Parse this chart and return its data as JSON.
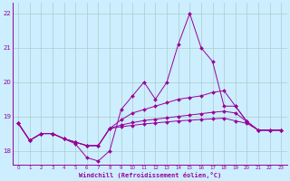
{
  "x": [
    0,
    1,
    2,
    3,
    4,
    5,
    6,
    7,
    8,
    9,
    10,
    11,
    12,
    13,
    14,
    15,
    16,
    17,
    18,
    19,
    20,
    21,
    22,
    23
  ],
  "line1": [
    18.8,
    18.3,
    18.5,
    18.5,
    18.35,
    18.2,
    17.8,
    17.7,
    18.0,
    19.2,
    19.6,
    20.0,
    19.5,
    20.0,
    21.1,
    22.0,
    21.0,
    20.6,
    19.3,
    19.3,
    18.85,
    18.6,
    18.6,
    18.6
  ],
  "line2": [
    18.8,
    18.3,
    18.5,
    18.5,
    18.35,
    18.25,
    18.15,
    18.15,
    18.65,
    18.9,
    19.1,
    19.2,
    19.3,
    19.4,
    19.5,
    19.55,
    19.6,
    19.7,
    19.75,
    19.3,
    18.85,
    18.6,
    18.6,
    18.6
  ],
  "line3": [
    18.8,
    18.3,
    18.5,
    18.5,
    18.35,
    18.25,
    18.15,
    18.15,
    18.65,
    18.75,
    18.82,
    18.88,
    18.92,
    18.96,
    19.0,
    19.04,
    19.08,
    19.12,
    19.15,
    19.1,
    18.85,
    18.6,
    18.6,
    18.6
  ],
  "line4": [
    18.8,
    18.3,
    18.5,
    18.5,
    18.35,
    18.25,
    18.15,
    18.15,
    18.65,
    18.7,
    18.74,
    18.78,
    18.81,
    18.84,
    18.87,
    18.89,
    18.91,
    18.93,
    18.95,
    18.87,
    18.8,
    18.6,
    18.6,
    18.6
  ],
  "bg_color": "#cceeff",
  "grid_color": "#aacccc",
  "line_color": "#990099",
  "ylim": [
    17.6,
    22.3
  ],
  "yticks": [
    18,
    19,
    20,
    21,
    22
  ],
  "xtick_labels": [
    "0",
    "1",
    "2",
    "3",
    "4",
    "5",
    "6",
    "7",
    "8",
    "9",
    "10",
    "11",
    "12",
    "13",
    "14",
    "15",
    "16",
    "17",
    "18",
    "19",
    "20",
    "21",
    "22",
    "23"
  ],
  "xlabel": "Windchill (Refroidissement éolien,°C)",
  "markersize": 2.0
}
